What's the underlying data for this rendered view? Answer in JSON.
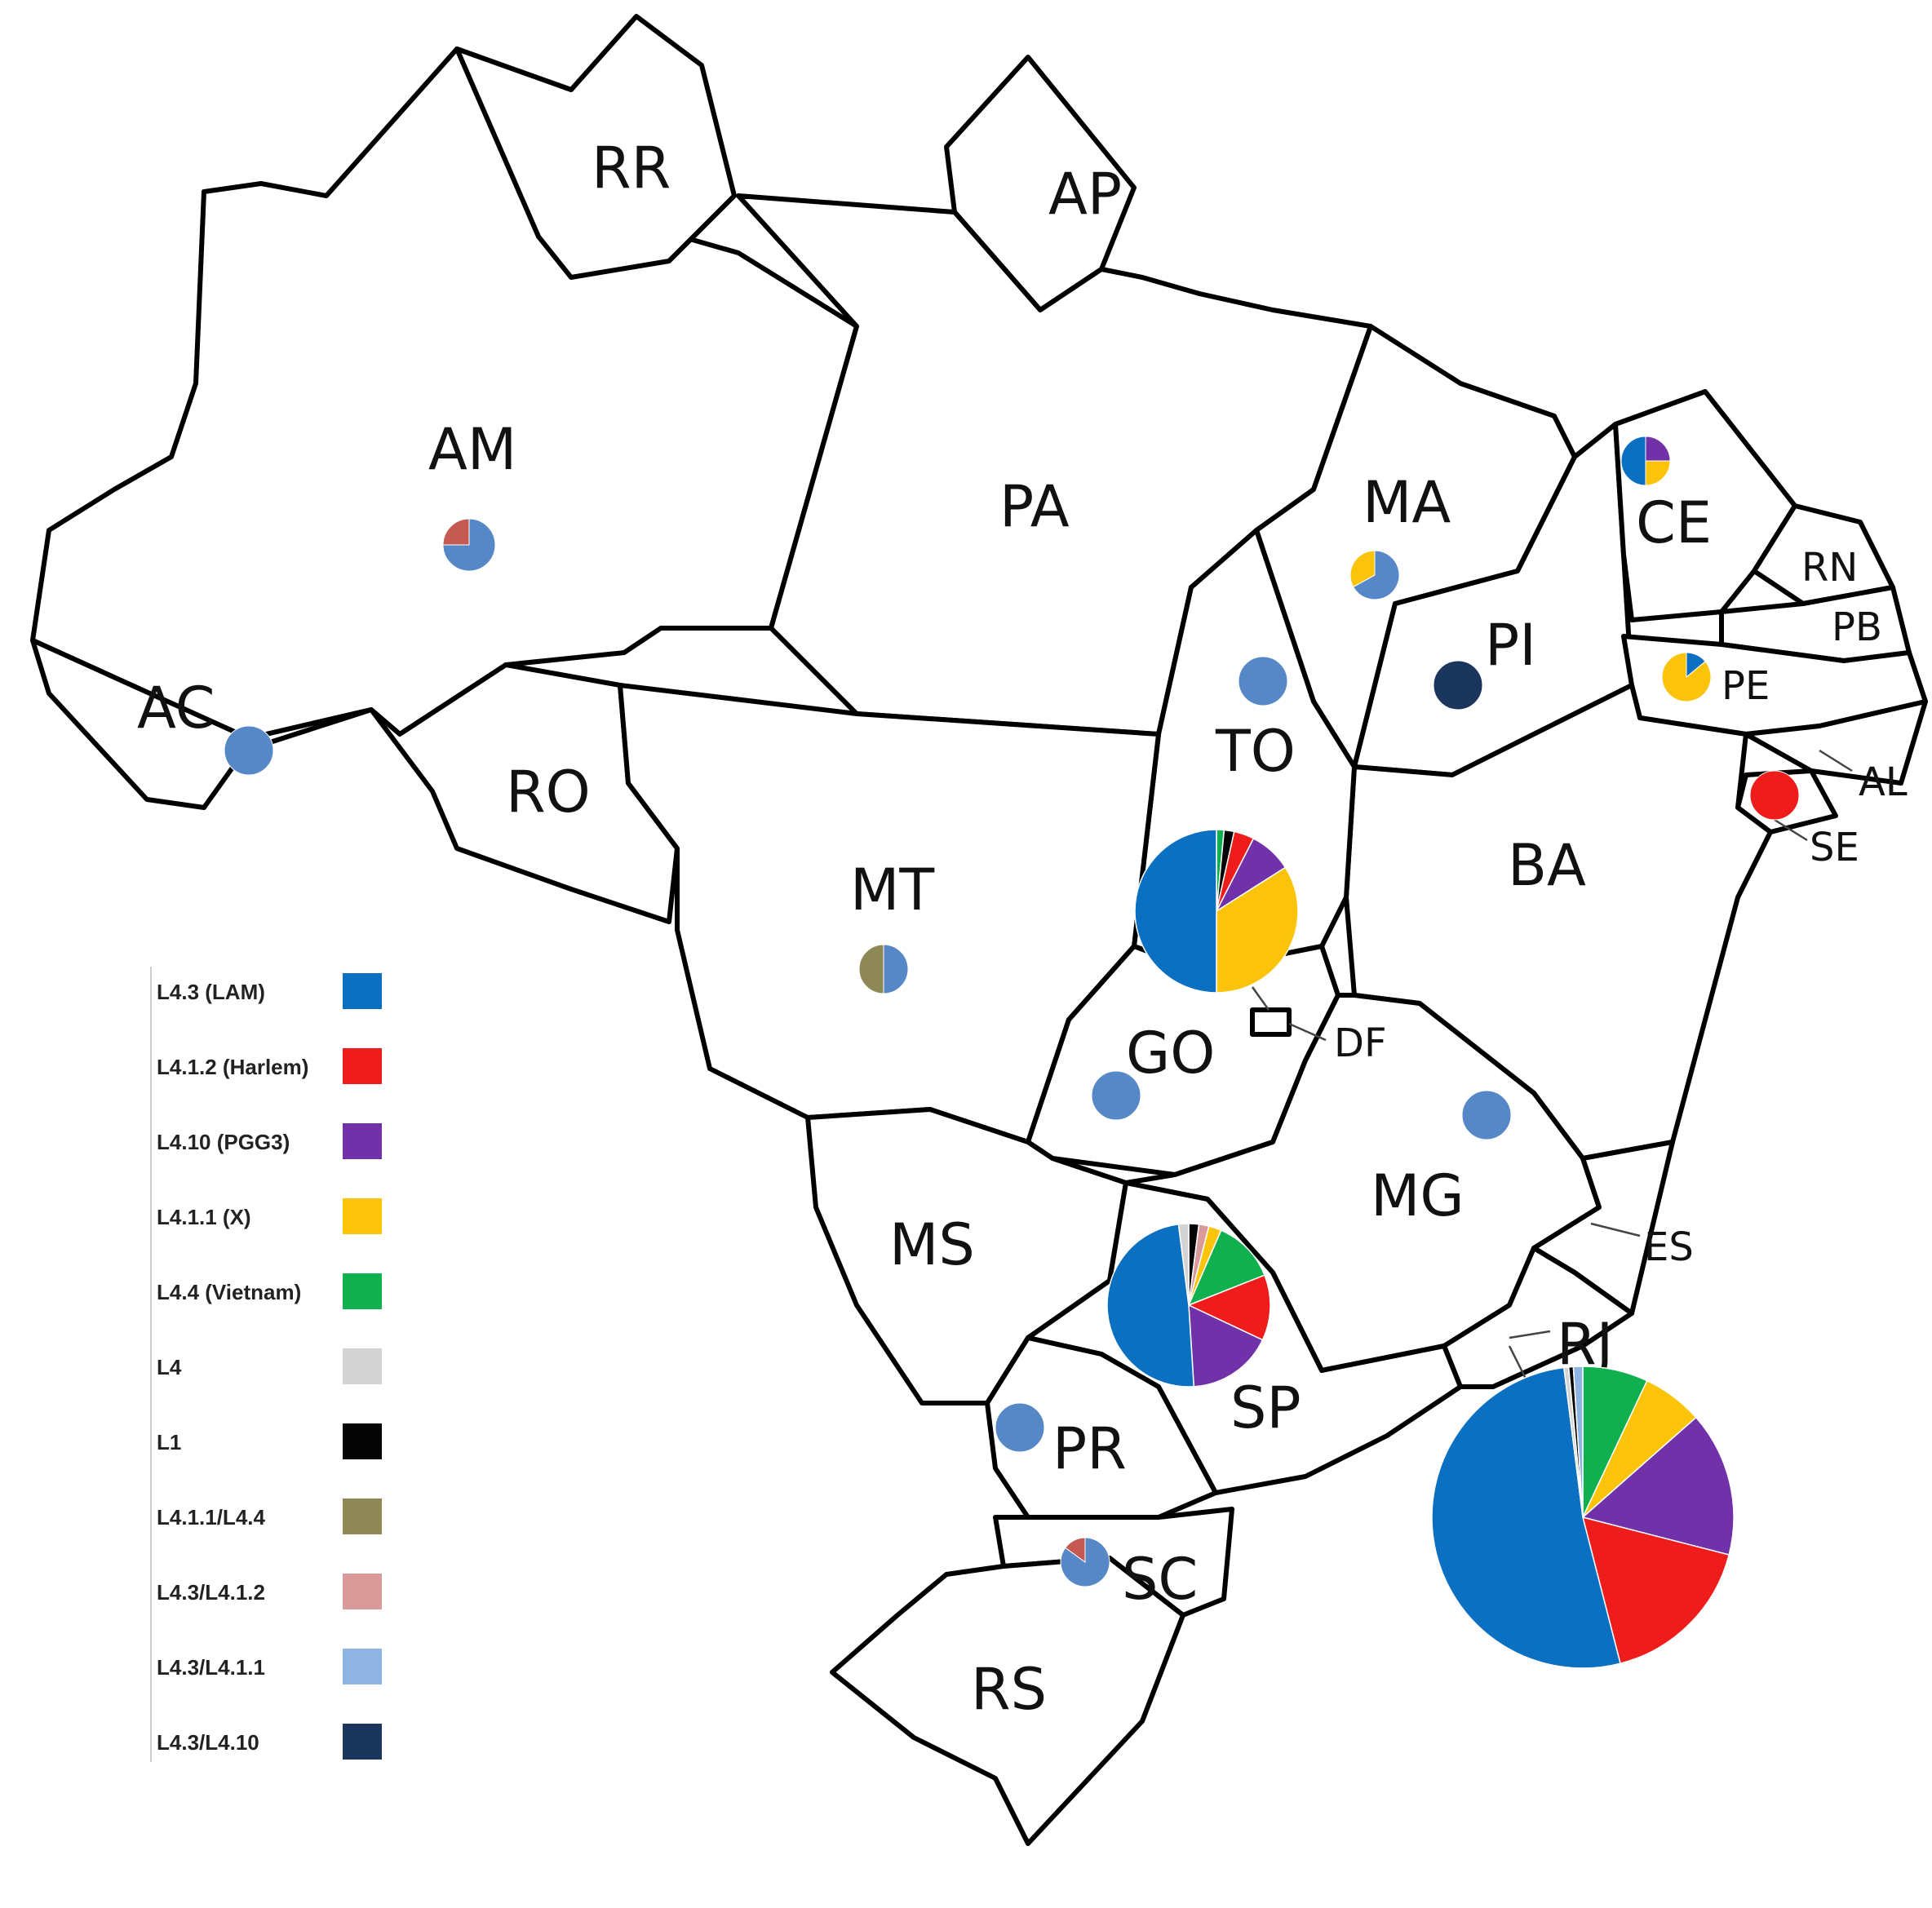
{
  "colors": {
    "L4.3 (LAM)": "#0b6fc2",
    "L4.1.2 (Harlem)": "#ef1c1c",
    "L4.10 (PGG3)": "#7131a8",
    "L4.1.1 (X)": "#fbc40b",
    "L4.4 (Vietnam)": "#11b04e",
    "L4": "#d3d3d3",
    "L1": "#050505",
    "L4.1.1/L4.4": "#8e8756",
    "L4.3/L4.1.2": "#db9a9a",
    "L4.3/L4.1.1": "#8fb4e3",
    "L4.3/L4.10": "#1b365d",
    "AM_red": "#c55a52",
    "single_blue": "#5687c7"
  },
  "states": {
    "RR": "RR",
    "AP": "AP",
    "AM": "AM",
    "PA": "PA",
    "MA": "MA",
    "CE": "CE",
    "RN": "RN",
    "PB": "PB",
    "PI": "PI",
    "PE": "PE",
    "AC": "AC",
    "TO": "TO",
    "RO": "RO",
    "AL": "AL",
    "SE": "SE",
    "BA": "BA",
    "MT": "MT",
    "DF": "DF",
    "GO": "GO",
    "MG": "MG",
    "MS": "MS",
    "ES": "ES",
    "RJ": "RJ",
    "SP": "SP",
    "PR": "PR",
    "SC": "SC",
    "RS": "RS"
  },
  "legend": [
    {
      "label": "L4.3 (LAM)",
      "color": "#0b6fc2"
    },
    {
      "label": "L4.1.2 (Harlem)",
      "color": "#ef1c1c"
    },
    {
      "label": "L4.10 (PGG3)",
      "color": "#7131a8"
    },
    {
      "label": "L4.1.1 (X)",
      "color": "#fbc40b"
    },
    {
      "label": "L4.4 (Vietnam)",
      "color": "#11b04e"
    },
    {
      "label": "L4",
      "color": "#d3d3d3"
    },
    {
      "label": "L1",
      "color": "#050505"
    },
    {
      "label": "L4.1.1/L4.4",
      "color": "#8e8756"
    },
    {
      "label": "L4.3/L4.1.2",
      "color": "#db9a9a"
    },
    {
      "label": "L4.3/L4.1.1",
      "color": "#8fb4e3"
    },
    {
      "label": "L4.3/L4.10",
      "color": "#1b365d"
    }
  ],
  "pies": {
    "AM": [
      {
        "lineage": "single_blue",
        "fraction": 0.75
      },
      {
        "lineage": "AM_red",
        "fraction": 0.25
      }
    ],
    "AC": [
      {
        "lineage": "single_blue",
        "fraction": 1.0
      }
    ],
    "MA": [
      {
        "lineage": "single_blue",
        "fraction": 0.67
      },
      {
        "lineage": "L4.1.1 (X)",
        "fraction": 0.33
      }
    ],
    "TO": [
      {
        "lineage": "single_blue",
        "fraction": 1.0
      }
    ],
    "PI": [
      {
        "lineage": "L4.3/L4.10",
        "fraction": 1.0
      }
    ],
    "CE": [
      {
        "lineage": "L4.10 (PGG3)",
        "fraction": 0.25
      },
      {
        "lineage": "L4.1.1 (X)",
        "fraction": 0.25
      },
      {
        "lineage": "L4.3 (LAM)",
        "fraction": 0.5
      }
    ],
    "PE": [
      {
        "lineage": "L4.3 (LAM)",
        "fraction": 0.14
      },
      {
        "lineage": "L4.1.1 (X)",
        "fraction": 0.86
      }
    ],
    "SE": [
      {
        "lineage": "L4.1.2 (Harlem)",
        "fraction": 1.0
      }
    ],
    "MT": [
      {
        "lineage": "single_blue",
        "fraction": 0.5
      },
      {
        "lineage": "L4.1.1/L4.4",
        "fraction": 0.5
      }
    ],
    "DF": [
      {
        "lineage": "L4.4 (Vietnam)",
        "fraction": 0.015
      },
      {
        "lineage": "L1",
        "fraction": 0.02
      },
      {
        "lineage": "L4.1.2 (Harlem)",
        "fraction": 0.04
      },
      {
        "lineage": "L4.10 (PGG3)",
        "fraction": 0.085
      },
      {
        "lineage": "L4.1.1 (X)",
        "fraction": 0.34
      },
      {
        "lineage": "L4.3 (LAM)",
        "fraction": 0.5
      }
    ],
    "GO": [
      {
        "lineage": "single_blue",
        "fraction": 1.0
      }
    ],
    "MG": [
      {
        "lineage": "single_blue",
        "fraction": 1.0
      }
    ],
    "SP": [
      {
        "lineage": "L1",
        "fraction": 0.02
      },
      {
        "lineage": "L4.3/L4.1.2",
        "fraction": 0.02
      },
      {
        "lineage": "L4.1.1 (X)",
        "fraction": 0.025
      },
      {
        "lineage": "L4.4 (Vietnam)",
        "fraction": 0.125
      },
      {
        "lineage": "L4.1.2 (Harlem)",
        "fraction": 0.13
      },
      {
        "lineage": "L4.10 (PGG3)",
        "fraction": 0.17
      },
      {
        "lineage": "L4.3 (LAM)",
        "fraction": 0.49
      },
      {
        "lineage": "L4",
        "fraction": 0.02
      }
    ],
    "PR": [
      {
        "lineage": "single_blue",
        "fraction": 1.0
      }
    ],
    "SC": [
      {
        "lineage": "single_blue",
        "fraction": 0.85
      },
      {
        "lineage": "AM_red",
        "fraction": 0.15
      }
    ],
    "RJ": [
      {
        "lineage": "L4.4 (Vietnam)",
        "fraction": 0.07
      },
      {
        "lineage": "L4.1.1 (X)",
        "fraction": 0.065
      },
      {
        "lineage": "L4.10 (PGG3)",
        "fraction": 0.155
      },
      {
        "lineage": "L4.1.2 (Harlem)",
        "fraction": 0.17
      },
      {
        "lineage": "L4.3 (LAM)",
        "fraction": 0.52
      },
      {
        "lineage": "L4",
        "fraction": 0.005
      },
      {
        "lineage": "L1",
        "fraction": 0.005
      },
      {
        "lineage": "L4.3/L4.1.1",
        "fraction": 0.01
      }
    ]
  }
}
